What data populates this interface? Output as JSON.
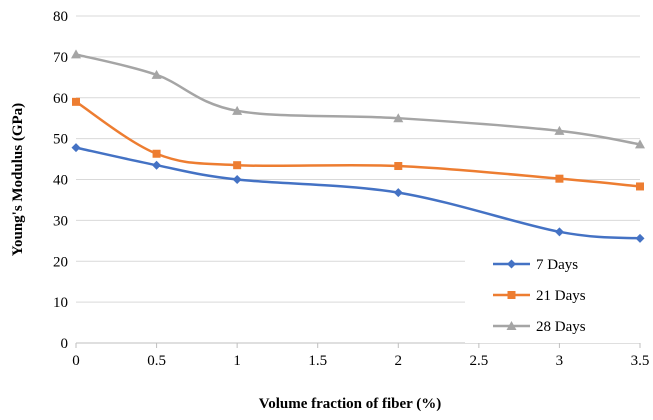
{
  "chart_data": {
    "type": "line",
    "smooth": true,
    "xlabel": "Volume fraction of fiber (%)",
    "ylabel": "Young's Modulus  (GPa)",
    "x": [
      0,
      0.5,
      1,
      2,
      3,
      3.5
    ],
    "xlim": [
      0,
      3.5
    ],
    "ylim": [
      0,
      80
    ],
    "x_ticks": [
      "0",
      "0.5",
      "1",
      "1.5",
      "2",
      "2.5",
      "3",
      "3.5"
    ],
    "y_ticks": [
      "0",
      "10",
      "20",
      "30",
      "40",
      "50",
      "60",
      "70",
      "80"
    ],
    "grid": "horizontal",
    "legend_position": "bottom-right",
    "series": [
      {
        "name": "7 Days",
        "color": "#4472C4",
        "marker": "diamond",
        "values": [
          47.8,
          43.5,
          40,
          36.8,
          27.2,
          25.6
        ]
      },
      {
        "name": "21 Days",
        "color": "#ED7D31",
        "marker": "square",
        "values": [
          59,
          46.3,
          43.5,
          43.3,
          40.2,
          38.3
        ]
      },
      {
        "name": "28 Days",
        "color": "#A5A5A5",
        "marker": "triangle",
        "values": [
          70.6,
          65.6,
          56.8,
          55,
          51.9,
          48.6
        ]
      }
    ]
  }
}
